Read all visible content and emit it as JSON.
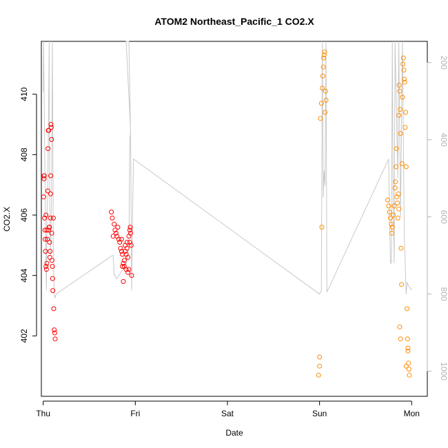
{
  "chart_data": {
    "type": "scatter",
    "title": "ATOM2 Northeast_Pacific_1 CO2.X",
    "xlabel": "Date",
    "ylabel": "CO2.X",
    "x_categories": [
      "Thu",
      "Fri",
      "Sat",
      "Sun",
      "Mon"
    ],
    "xlim": [
      -0.02,
      4.17
    ],
    "ylim": [
      400.0,
      411.75
    ],
    "yticks": [
      402,
      404,
      406,
      408,
      410
    ],
    "y2lim": [
      1065,
      145
    ],
    "y2ticks": [
      200,
      400,
      600,
      800,
      1000
    ],
    "grid": false,
    "series": [
      {
        "color": "#ff0000",
        "marker": "open-circle",
        "points": [
          [
            0.005,
            406.6
          ],
          [
            0.01,
            407.3
          ],
          [
            0.01,
            407.2
          ],
          [
            0.012,
            407.3
          ],
          [
            0.015,
            405.9
          ],
          [
            0.02,
            405.5
          ],
          [
            0.022,
            405.2
          ],
          [
            0.025,
            404.8
          ],
          [
            0.03,
            404.3
          ],
          [
            0.035,
            404.2
          ],
          [
            0.04,
            405.5
          ],
          [
            0.045,
            405.2
          ],
          [
            0.05,
            406.8
          ],
          [
            0.052,
            408.2
          ],
          [
            0.055,
            408.8
          ],
          [
            0.06,
            408.8
          ],
          [
            0.065,
            405.6
          ],
          [
            0.068,
            405.6
          ],
          [
            0.07,
            405.1
          ],
          [
            0.072,
            404.6
          ],
          [
            0.075,
            404.8
          ],
          [
            0.078,
            405.9
          ],
          [
            0.08,
            406.7
          ],
          [
            0.082,
            407.3
          ],
          [
            0.085,
            409.0
          ],
          [
            0.088,
            408.9
          ],
          [
            0.09,
            408.5
          ],
          [
            0.092,
            405.4
          ],
          [
            0.095,
            404.5
          ],
          [
            0.1,
            404.3
          ],
          [
            0.102,
            403.9
          ],
          [
            0.105,
            403.5
          ],
          [
            0.11,
            405.9
          ],
          [
            0.115,
            402.9
          ],
          [
            0.12,
            402.2
          ],
          [
            0.125,
            402.1
          ],
          [
            0.13,
            401.9
          ],
          [
            0.06,
            405.5
          ],
          [
            0.04,
            404.4
          ],
          [
            0.03,
            406.0
          ]
        ]
      },
      {
        "color": "#ff0000",
        "marker": "open-circle",
        "points": [
          [
            0.74,
            406.1
          ],
          [
            0.75,
            405.9
          ],
          [
            0.76,
            405.3
          ],
          [
            0.77,
            405.7
          ],
          [
            0.78,
            405.5
          ],
          [
            0.79,
            405.4
          ],
          [
            0.8,
            405.3
          ],
          [
            0.81,
            405.6
          ],
          [
            0.82,
            405.2
          ],
          [
            0.83,
            405.1
          ],
          [
            0.84,
            404.9
          ],
          [
            0.85,
            404.8
          ],
          [
            0.86,
            404.7
          ],
          [
            0.87,
            404.4
          ],
          [
            0.88,
            404.5
          ],
          [
            0.89,
            404.8
          ],
          [
            0.9,
            404.2
          ],
          [
            0.91,
            404.9
          ],
          [
            0.92,
            404.6
          ],
          [
            0.93,
            405.3
          ],
          [
            0.94,
            405.5
          ],
          [
            0.945,
            405.6
          ],
          [
            0.95,
            405.4
          ],
          [
            0.955,
            405.0
          ],
          [
            0.96,
            404.0
          ],
          [
            0.87,
            403.8
          ],
          [
            0.88,
            404.3
          ],
          [
            0.89,
            405.0
          ],
          [
            0.9,
            404.7
          ],
          [
            0.91,
            405.1
          ],
          [
            0.92,
            404.1
          ],
          [
            0.93,
            404.2
          ],
          [
            0.94,
            405.1
          ],
          [
            0.85,
            405.2
          ],
          [
            0.86,
            404.3
          ]
        ]
      },
      {
        "color": "#ff8c00",
        "marker": "open-circle",
        "points": [
          [
            2.99,
            400.7
          ],
          [
            3.0,
            401.0
          ],
          [
            3.0,
            401.3
          ],
          [
            3.01,
            409.2
          ],
          [
            3.02,
            409.7
          ],
          [
            3.025,
            405.6
          ],
          [
            3.03,
            410.2
          ],
          [
            3.035,
            410.6
          ],
          [
            3.04,
            410.9
          ],
          [
            3.045,
            411.2
          ],
          [
            3.05,
            411.3
          ],
          [
            3.055,
            411.4
          ],
          [
            3.06,
            409.4
          ],
          [
            3.065,
            410.1
          ],
          [
            3.07,
            409.8
          ]
        ]
      },
      {
        "color": "#ff8c00",
        "marker": "open-circle",
        "points": [
          [
            3.74,
            406.5
          ],
          [
            3.75,
            406.3
          ],
          [
            3.76,
            406.1
          ],
          [
            3.77,
            405.9
          ],
          [
            3.78,
            405.7
          ],
          [
            3.785,
            405.4
          ],
          [
            3.79,
            405.6
          ],
          [
            3.8,
            406.0
          ],
          [
            3.81,
            406.3
          ],
          [
            3.82,
            406.9
          ],
          [
            3.825,
            407.1
          ],
          [
            3.83,
            407.6
          ],
          [
            3.835,
            408.2
          ],
          [
            3.84,
            406.6
          ],
          [
            3.845,
            406.4
          ],
          [
            3.85,
            405.9
          ],
          [
            3.855,
            406.7
          ],
          [
            3.86,
            409.3
          ],
          [
            3.865,
            410.3
          ],
          [
            3.87,
            410.1
          ],
          [
            3.875,
            409.5
          ],
          [
            3.88,
            408.7
          ],
          [
            3.885,
            404.9
          ],
          [
            3.89,
            403.7
          ],
          [
            3.895,
            407.7
          ],
          [
            3.9,
            409.9
          ],
          [
            3.905,
            411.0
          ],
          [
            3.91,
            411.2
          ],
          [
            3.915,
            410.8
          ],
          [
            3.92,
            410.5
          ],
          [
            3.925,
            410.4
          ],
          [
            3.93,
            408.9
          ],
          [
            3.935,
            409.4
          ],
          [
            3.94,
            407.6
          ],
          [
            3.95,
            402.9
          ],
          [
            3.955,
            401.9
          ],
          [
            3.96,
            401.5
          ],
          [
            3.965,
            401.1
          ],
          [
            3.97,
            400.9
          ],
          [
            3.975,
            400.7
          ],
          [
            3.87,
            402.3
          ],
          [
            3.88,
            401.9
          ],
          [
            3.94,
            401.0
          ],
          [
            3.96,
            401.6
          ],
          [
            3.86,
            406.2
          ]
        ]
      }
    ],
    "line_series": [
      {
        "color": "#c8c8c8",
        "axis": "right",
        "points": [
          [
            0.0,
            275
          ],
          [
            0.005,
            145
          ],
          [
            0.01,
            275
          ],
          [
            0.02,
            500
          ],
          [
            0.03,
            720
          ],
          [
            0.035,
            790
          ],
          [
            0.04,
            620
          ],
          [
            0.05,
            500
          ],
          [
            0.06,
            290
          ],
          [
            0.065,
            145
          ],
          [
            0.07,
            560
          ],
          [
            0.08,
            700
          ],
          [
            0.09,
            560
          ],
          [
            0.1,
            145
          ],
          [
            0.11,
            690
          ],
          [
            0.12,
            800
          ],
          [
            0.13,
            810
          ],
          [
            0.14,
            800
          ],
          [
            0.75,
            700
          ],
          [
            0.76,
            700
          ],
          [
            0.77,
            750
          ],
          [
            0.78,
            750
          ],
          [
            0.79,
            760
          ],
          [
            0.8,
            760
          ],
          [
            0.84,
            745
          ],
          [
            0.9,
            725
          ],
          [
            0.92,
            700
          ],
          [
            0.93,
            680
          ],
          [
            0.94,
            400
          ],
          [
            0.95,
            380
          ],
          [
            0.9,
            145
          ],
          [
            0.93,
            145
          ],
          [
            0.95,
            400
          ],
          [
            0.96,
            790
          ],
          [
            0.97,
            600
          ],
          [
            0.98,
            450
          ],
          [
            3.0,
            800
          ],
          [
            3.02,
            790
          ],
          [
            3.03,
            145
          ],
          [
            3.04,
            550
          ],
          [
            3.05,
            480
          ],
          [
            3.06,
            520
          ],
          [
            3.07,
            145
          ],
          [
            3.08,
            795
          ],
          [
            3.75,
            450
          ],
          [
            3.76,
            600
          ],
          [
            3.77,
            720
          ],
          [
            3.78,
            720
          ],
          [
            3.79,
            145
          ],
          [
            3.8,
            550
          ],
          [
            3.81,
            720
          ],
          [
            3.82,
            145
          ],
          [
            3.85,
            500
          ],
          [
            3.86,
            145
          ],
          [
            3.88,
            600
          ],
          [
            3.9,
            145
          ],
          [
            3.92,
            650
          ],
          [
            3.94,
            800
          ],
          [
            3.95,
            770
          ],
          [
            3.97,
            780
          ],
          [
            4.0,
            790
          ]
        ]
      }
    ]
  }
}
